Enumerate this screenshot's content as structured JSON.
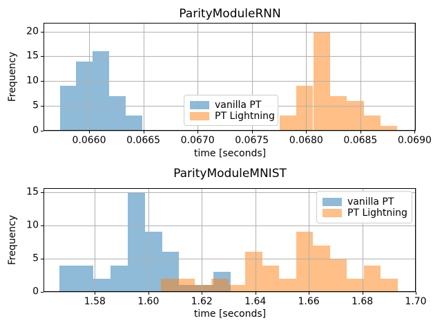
{
  "figure": {
    "background": "#ffffff",
    "grid_color": "#b0b0b0",
    "axes_edge_color": "#000000",
    "text_color": "#000000"
  },
  "legend": {
    "alpha": 0.5,
    "background": "#ffffff",
    "border_color": "#cccccc",
    "items": [
      {
        "label": "vanilla PT",
        "color": "#1f77b4"
      },
      {
        "label": "PT Lightning",
        "color": "#ff7f0e"
      }
    ]
  },
  "chart_data": [
    {
      "type": "bar",
      "subtype": "histogram",
      "title": "ParityModuleRNN",
      "xlabel": "time [seconds]",
      "ylabel": "Frequency",
      "grid": true,
      "legend_position": "center",
      "xlim": [
        0.06558,
        0.06901
      ],
      "ylim": [
        0,
        21.75
      ],
      "xticks": [
        0.066,
        0.0665,
        0.067,
        0.0675,
        0.068,
        0.0685,
        0.069
      ],
      "xtick_labels": [
        "0.0660",
        "0.0665",
        "0.0670",
        "0.0675",
        "0.0680",
        "0.0685",
        "0.0690"
      ],
      "yticks": [
        0,
        5,
        10,
        15,
        20
      ],
      "ytick_labels": [
        "0",
        "5",
        "10",
        "15",
        "20"
      ],
      "series": [
        {
          "name": "vanilla PT",
          "color": "#1f77b4",
          "alpha": 0.5,
          "bin_start": 0.06573,
          "bin_width": 0.000152,
          "counts": [
            9,
            14,
            16,
            7,
            3
          ]
        },
        {
          "name": "PT Lightning",
          "color": "#ff7f0e",
          "alpha": 0.5,
          "bin_start": 0.067755,
          "bin_width": 0.000155,
          "counts": [
            3,
            9,
            20,
            7,
            6,
            3,
            1
          ]
        }
      ]
    },
    {
      "type": "bar",
      "subtype": "histogram",
      "title": "ParityModuleMNIST",
      "xlabel": "time [seconds]",
      "ylabel": "Frequency",
      "grid": true,
      "legend_position": "upper right",
      "xlim": [
        1.5608,
        1.7
      ],
      "ylim": [
        0,
        15.6
      ],
      "xticks": [
        1.58,
        1.6,
        1.62,
        1.64,
        1.66,
        1.68,
        1.7
      ],
      "xtick_labels": [
        "1.58",
        "1.60",
        "1.62",
        "1.64",
        "1.66",
        "1.68",
        "1.70"
      ],
      "yticks": [
        0,
        5,
        10,
        15
      ],
      "ytick_labels": [
        "0",
        "5",
        "10",
        "15"
      ],
      "series": [
        {
          "name": "vanilla PT",
          "color": "#1f77b4",
          "alpha": 0.5,
          "bin_start": 1.5667,
          "bin_width": 0.0064,
          "counts": [
            4,
            4,
            2,
            4,
            15,
            9,
            6,
            1,
            1,
            3
          ]
        },
        {
          "name": "PT Lightning",
          "color": "#ff7f0e",
          "alpha": 0.5,
          "bin_start": 1.6046,
          "bin_width": 0.00633,
          "counts": [
            2,
            2,
            1,
            2,
            1,
            6,
            4,
            2,
            9,
            7,
            5,
            2,
            4,
            2
          ]
        }
      ]
    }
  ]
}
